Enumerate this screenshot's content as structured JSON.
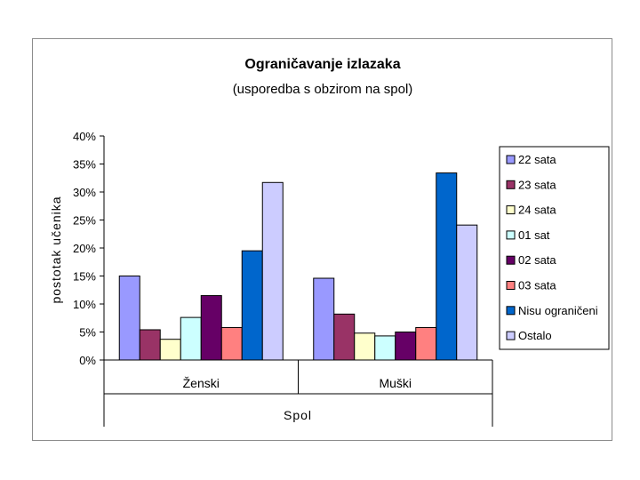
{
  "chart_data": {
    "type": "bar",
    "title": "Ograničavanje izlazaka",
    "subtitle": "(usporedba s obzirom na spol)",
    "ylabel": "postotak učenika",
    "xlabel": "Spol",
    "ylim": [
      0,
      40
    ],
    "yticks": [
      "0%",
      "5%",
      "10%",
      "15%",
      "20%",
      "25%",
      "30%",
      "35%",
      "40%"
    ],
    "categories": [
      "Ženski",
      "Muški"
    ],
    "legend_position": "right",
    "series": [
      {
        "name": "22 sata",
        "color": "#9999ff",
        "values": [
          15.0,
          14.6
        ]
      },
      {
        "name": "23 sata",
        "color": "#993366",
        "values": [
          5.4,
          8.2
        ]
      },
      {
        "name": "24 sata",
        "color": "#ffffcc",
        "values": [
          3.7,
          4.8
        ]
      },
      {
        "name": "01 sat",
        "color": "#ccffff",
        "values": [
          7.6,
          4.3
        ]
      },
      {
        "name": "02 sata",
        "color": "#660066",
        "values": [
          11.5,
          5.0
        ]
      },
      {
        "name": "03 sata",
        "color": "#ff8080",
        "values": [
          5.8,
          5.8
        ]
      },
      {
        "name": "Nisu ograničeni",
        "color": "#0066cc",
        "values": [
          19.5,
          33.4
        ]
      },
      {
        "name": "Ostalo",
        "color": "#ccccff",
        "values": [
          31.7,
          24.1
        ]
      }
    ]
  }
}
